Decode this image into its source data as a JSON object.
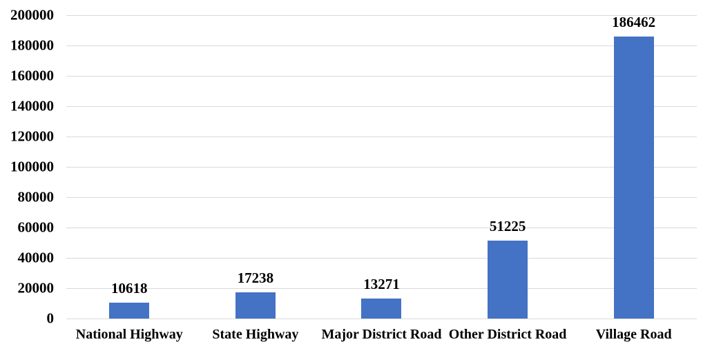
{
  "chart_data": {
    "type": "bar",
    "title": "",
    "xlabel": "",
    "ylabel": "",
    "categories": [
      "National Highway",
      "State Highway",
      "Major District Road",
      "Other District Road",
      "Village Road"
    ],
    "values": [
      10618,
      17238,
      13271,
      51225,
      186462
    ],
    "data_labels": [
      "10618",
      "17238",
      "13271",
      "51225",
      "186462"
    ],
    "ylim": [
      0,
      200000
    ],
    "ytick_step": 20000,
    "ytick_labels": [
      "0",
      "20000",
      "40000",
      "60000",
      "80000",
      "100000",
      "120000",
      "140000",
      "160000",
      "180000",
      "200000"
    ],
    "grid": "horizontal",
    "legend_position": "none",
    "colors": {
      "bar": "#4472C4",
      "gridline": "#D9D9D9",
      "text": "#000000",
      "background": "#FFFFFF"
    }
  }
}
